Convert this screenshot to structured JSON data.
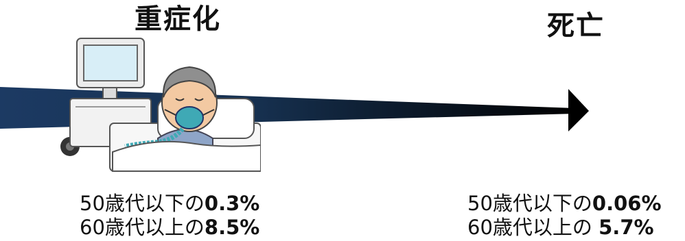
{
  "stages": {
    "severe": {
      "title": "重症化",
      "rows": [
        {
          "label": "50歳代以下の",
          "value": "0.3%"
        },
        {
          "label": "60歳代以上の",
          "value": "8.5%"
        }
      ]
    },
    "death": {
      "title": "死亡",
      "rows": [
        {
          "label": "50歳代以下の",
          "value": "0.06%"
        },
        {
          "label": "60歳代以上の ",
          "value": "5.7%"
        }
      ]
    }
  },
  "colors": {
    "arrow_start": "#1c3a63",
    "arrow_end": "#000000",
    "mask": "#3fa9b5",
    "hair": "#8f8f8f",
    "skin": "#f3c9a2"
  },
  "icons": {
    "illustration": "ventilator-patient-illustration",
    "arrow": "progression-arrow"
  }
}
